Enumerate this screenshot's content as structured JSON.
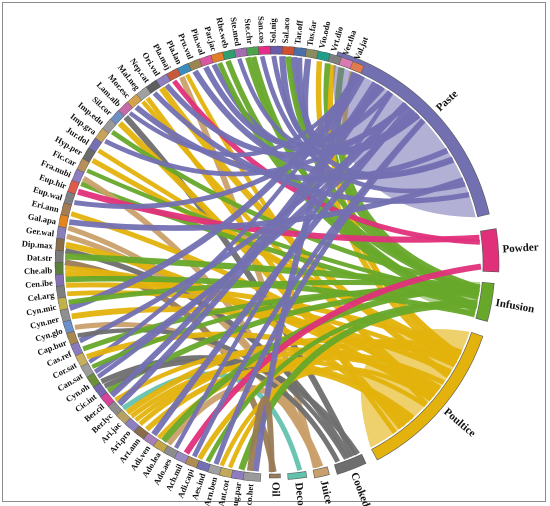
{
  "preparations": [
    {
      "label": "Paste",
      "color": "#7370B2"
    },
    {
      "label": "Powder",
      "color": "#E0307A"
    },
    {
      "label": "Infusion",
      "color": "#67A82A"
    },
    {
      "label": "Poultice",
      "color": "#E3B20C"
    },
    {
      "label": "Cooked",
      "color": "#6E6E6E"
    },
    {
      "label": "Juice",
      "color": "#C9A06C"
    },
    {
      "label": "Decoction",
      "color": "#63C2AE"
    },
    {
      "label": "Oil",
      "color": "#9A7B55"
    }
  ],
  "species": [
    {
      "label": "Val.jat",
      "color": "#E07A4F"
    },
    {
      "label": "Ver.tha",
      "color": "#D97AB0"
    },
    {
      "label": "Vrt.dio",
      "color": "#7F7F7F"
    },
    {
      "label": "Vio.odo",
      "color": "#1F9E89"
    },
    {
      "label": "Tus.far",
      "color": "#8B8B60"
    },
    {
      "label": "Tar.off",
      "color": "#4C6FA8"
    },
    {
      "label": "Sal.aco",
      "color": "#D14F2F"
    },
    {
      "label": "Sol.nig",
      "color": "#6A5AA8"
    },
    {
      "label": "San.cos",
      "color": "#E82C8A"
    },
    {
      "label": "Ste.chr",
      "color": "#4DA34B"
    },
    {
      "label": "Ste.med",
      "color": "#A36DB0"
    },
    {
      "label": "Rhe.web",
      "color": "#2E9E6E"
    },
    {
      "label": "Par.jac",
      "color": "#E07E2A"
    },
    {
      "label": "Pin.wal",
      "color": "#D957A0"
    },
    {
      "label": "Pru.vul",
      "color": "#9C8550"
    },
    {
      "label": "Pla.lan",
      "color": "#3C8DBC"
    },
    {
      "label": "Pla.maj",
      "color": "#C75A3A"
    },
    {
      "label": "Ori.vul",
      "color": "#8F7FC0"
    },
    {
      "label": "Nep.cat",
      "color": "#5E5E5E"
    },
    {
      "label": "Mal.neg",
      "color": "#A0A0A0"
    },
    {
      "label": "Mor.esc",
      "color": "#D2A24C"
    },
    {
      "label": "Lam.alb",
      "color": "#C66AA8"
    },
    {
      "label": "Sil.cor",
      "color": "#6F8FC0"
    },
    {
      "label": "Imp.edu",
      "color": "#9A9A9A"
    },
    {
      "label": "Imp.gra",
      "color": "#C7A25A"
    },
    {
      "label": "Jur.dol",
      "color": "#7570B3"
    },
    {
      "label": "Hyp.per",
      "color": "#6B6B6B"
    },
    {
      "label": "Fic.car",
      "color": "#B68F5A"
    },
    {
      "label": "Fra.nubi",
      "color": "#8E7CC3"
    },
    {
      "label": "Eup.hir",
      "color": "#E05C4A"
    },
    {
      "label": "Eup.wal",
      "color": "#7F7F7F"
    },
    {
      "label": "Eri.ann",
      "color": "#A67C52"
    },
    {
      "label": "Gal.apa",
      "color": "#E3861F"
    },
    {
      "label": "Ger.wal",
      "color": "#8A7FB8"
    },
    {
      "label": "Dip.max",
      "color": "#8A6C48"
    },
    {
      "label": "Dat.str",
      "color": "#7A7A7A"
    },
    {
      "label": "Che.alb",
      "color": "#5C7F3A"
    },
    {
      "label": "Cen.ibe",
      "color": "#8470B0"
    },
    {
      "label": "Cel.arg",
      "color": "#7E7E7E"
    },
    {
      "label": "Cyn.mic",
      "color": "#C2B14A"
    },
    {
      "label": "Cyn.ner",
      "color": "#8F8F8F"
    },
    {
      "label": "Cyn.glo",
      "color": "#6C8FC7"
    },
    {
      "label": "Cap.bur",
      "color": "#A7884E"
    },
    {
      "label": "Cas.ref",
      "color": "#8A7AC0"
    },
    {
      "label": "Cor.sat",
      "color": "#C6B060"
    },
    {
      "label": "Can.sat",
      "color": "#9C9C9C"
    },
    {
      "label": "Cyn.oh",
      "color": "#6B8E3A"
    },
    {
      "label": "Cic.int",
      "color": "#7568B0"
    },
    {
      "label": "Ber.cil",
      "color": "#D4449A"
    },
    {
      "label": "Ber.lyc",
      "color": "#8C8C8C"
    },
    {
      "label": "Ari.jac",
      "color": "#B6A063"
    },
    {
      "label": "Ari.pro",
      "color": "#8B80C0"
    },
    {
      "label": "Art.ann",
      "color": "#8A6B4A"
    },
    {
      "label": "Adi.ven",
      "color": "#A77FB8"
    },
    {
      "label": "Ado.lea",
      "color": "#C2A64A"
    },
    {
      "label": "Ado.aes",
      "color": "#8C8C8C"
    },
    {
      "label": "Ach.mil",
      "color": "#9A8AC2"
    },
    {
      "label": "Adi.capi",
      "color": "#B08C55"
    },
    {
      "label": "Aes.ind",
      "color": "#7570B3"
    },
    {
      "label": "Arn.ben",
      "color": "#A0A0A0"
    },
    {
      "label": "Ant.cot",
      "color": "#C0A95A"
    },
    {
      "label": "Ajug.par",
      "color": "#8D7DC0"
    },
    {
      "label": "Aco.het",
      "color": "#9A9A9A"
    }
  ]
}
